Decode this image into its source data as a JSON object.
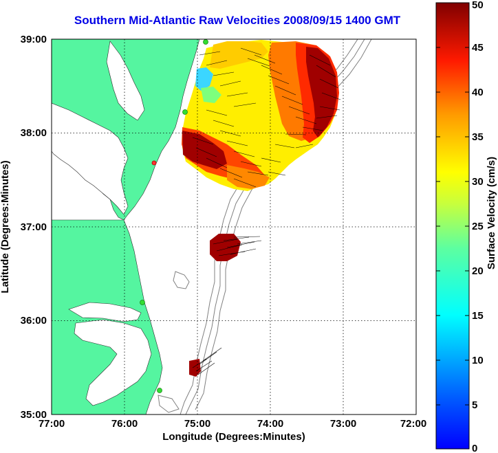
{
  "title": "Southern Mid-Atlantic Raw Velocities 2008/09/15 1400 GMT",
  "x_axis": {
    "label": "Longitude (Degrees:Minutes)",
    "ticks": [
      "77:00",
      "76:00",
      "75:00",
      "74:00",
      "73:00",
      "72:00"
    ]
  },
  "y_axis": {
    "label": "Latitude (Degrees:Minutes)",
    "ticks": [
      "39:00",
      "38:00",
      "37:00",
      "36:00",
      "35:00"
    ]
  },
  "colorbar": {
    "label": "Surface Velocity (cm/s)",
    "ticks": [
      "50",
      "45",
      "40",
      "35",
      "30",
      "25",
      "20",
      "15",
      "10",
      "5",
      "0"
    ],
    "min": 0,
    "max": 50
  },
  "map_extent": {
    "lon_range": [
      -77,
      -72
    ],
    "lat_range": [
      35,
      39
    ],
    "grid": true
  },
  "colors": {
    "land": "#55f5a0",
    "ocean": "#ffffff",
    "bathymetry": "#808080",
    "coast": "#2a2a2a",
    "title": "#0000e6",
    "station_marker": "#33dd33",
    "station_marker_alt": "#ff3333"
  }
}
